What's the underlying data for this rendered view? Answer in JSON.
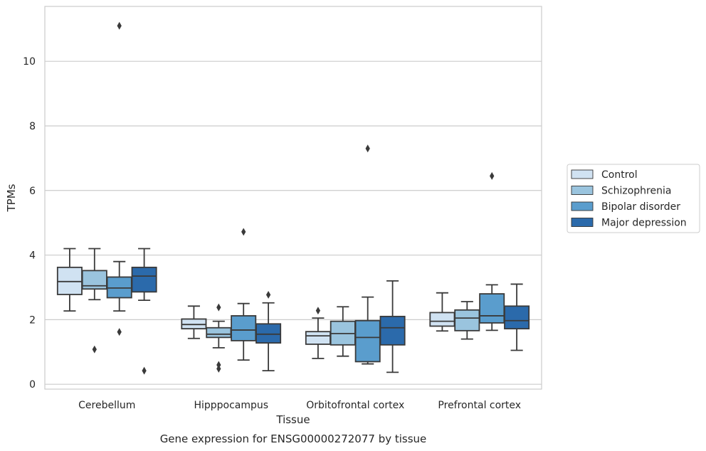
{
  "chart_data": {
    "type": "box",
    "title": "",
    "caption": "Gene expression for ENSG00000272077 by tissue",
    "xlabel": "Tissue",
    "ylabel": "TPMs",
    "ylim": [
      -0.15,
      11.7
    ],
    "yticks": [
      0,
      2,
      4,
      6,
      8,
      10
    ],
    "grid": "horizontal",
    "legend_position": "right",
    "categories": [
      "Cerebellum",
      "Hipppocampus",
      "Orbitofrontal cortex",
      "Prefrontal cortex"
    ],
    "series": [
      {
        "name": "Control",
        "color": "#d0e2f2",
        "boxes": [
          {
            "whislo": 2.27,
            "q1": 2.78,
            "med": 3.18,
            "q3": 3.62,
            "whishi": 4.2,
            "fliers": []
          },
          {
            "whislo": 1.42,
            "q1": 1.72,
            "med": 1.85,
            "q3": 2.02,
            "whishi": 2.42,
            "fliers": []
          },
          {
            "whislo": 0.8,
            "q1": 1.24,
            "med": 1.5,
            "q3": 1.63,
            "whishi": 2.05,
            "fliers": [
              2.28
            ]
          },
          {
            "whislo": 1.65,
            "q1": 1.8,
            "med": 1.95,
            "q3": 2.22,
            "whishi": 2.83,
            "fliers": []
          }
        ]
      },
      {
        "name": "Schizophrenia",
        "color": "#9ac4de",
        "boxes": [
          {
            "whislo": 2.62,
            "q1": 2.95,
            "med": 3.05,
            "q3": 3.52,
            "whishi": 4.2,
            "fliers": [
              1.08
            ]
          },
          {
            "whislo": 1.13,
            "q1": 1.45,
            "med": 1.55,
            "q3": 1.75,
            "whishi": 1.95,
            "fliers": [
              2.38,
              0.6,
              0.48
            ]
          },
          {
            "whislo": 0.87,
            "q1": 1.22,
            "med": 1.57,
            "q3": 1.95,
            "whishi": 2.4,
            "fliers": []
          },
          {
            "whislo": 1.4,
            "q1": 1.66,
            "med": 2.05,
            "q3": 2.3,
            "whishi": 2.56,
            "fliers": []
          }
        ]
      },
      {
        "name": "Bipolar disorder",
        "color": "#5a9dcd",
        "boxes": [
          {
            "whislo": 2.27,
            "q1": 2.68,
            "med": 2.98,
            "q3": 3.32,
            "whishi": 3.8,
            "fliers": [
              11.1,
              1.62
            ]
          },
          {
            "whislo": 0.75,
            "q1": 1.35,
            "med": 1.68,
            "q3": 2.12,
            "whishi": 2.5,
            "fliers": [
              4.72
            ]
          },
          {
            "whislo": 0.63,
            "q1": 0.7,
            "med": 1.45,
            "q3": 1.97,
            "whishi": 2.7,
            "fliers": [
              7.3
            ]
          },
          {
            "whislo": 1.67,
            "q1": 1.9,
            "med": 2.12,
            "q3": 2.8,
            "whishi": 3.08,
            "fliers": [
              6.45
            ]
          }
        ]
      },
      {
        "name": "Major depression",
        "color": "#2b6aab",
        "boxes": [
          {
            "whislo": 2.6,
            "q1": 2.86,
            "med": 3.35,
            "q3": 3.62,
            "whishi": 4.2,
            "fliers": [
              0.42
            ]
          },
          {
            "whislo": 0.42,
            "q1": 1.28,
            "med": 1.55,
            "q3": 1.87,
            "whishi": 2.52,
            "fliers": [
              2.77
            ]
          },
          {
            "whislo": 0.37,
            "q1": 1.22,
            "med": 1.75,
            "q3": 2.1,
            "whishi": 3.2,
            "fliers": []
          },
          {
            "whislo": 1.05,
            "q1": 1.72,
            "med": 1.97,
            "q3": 2.42,
            "whishi": 3.1,
            "fliers": []
          }
        ]
      }
    ]
  }
}
